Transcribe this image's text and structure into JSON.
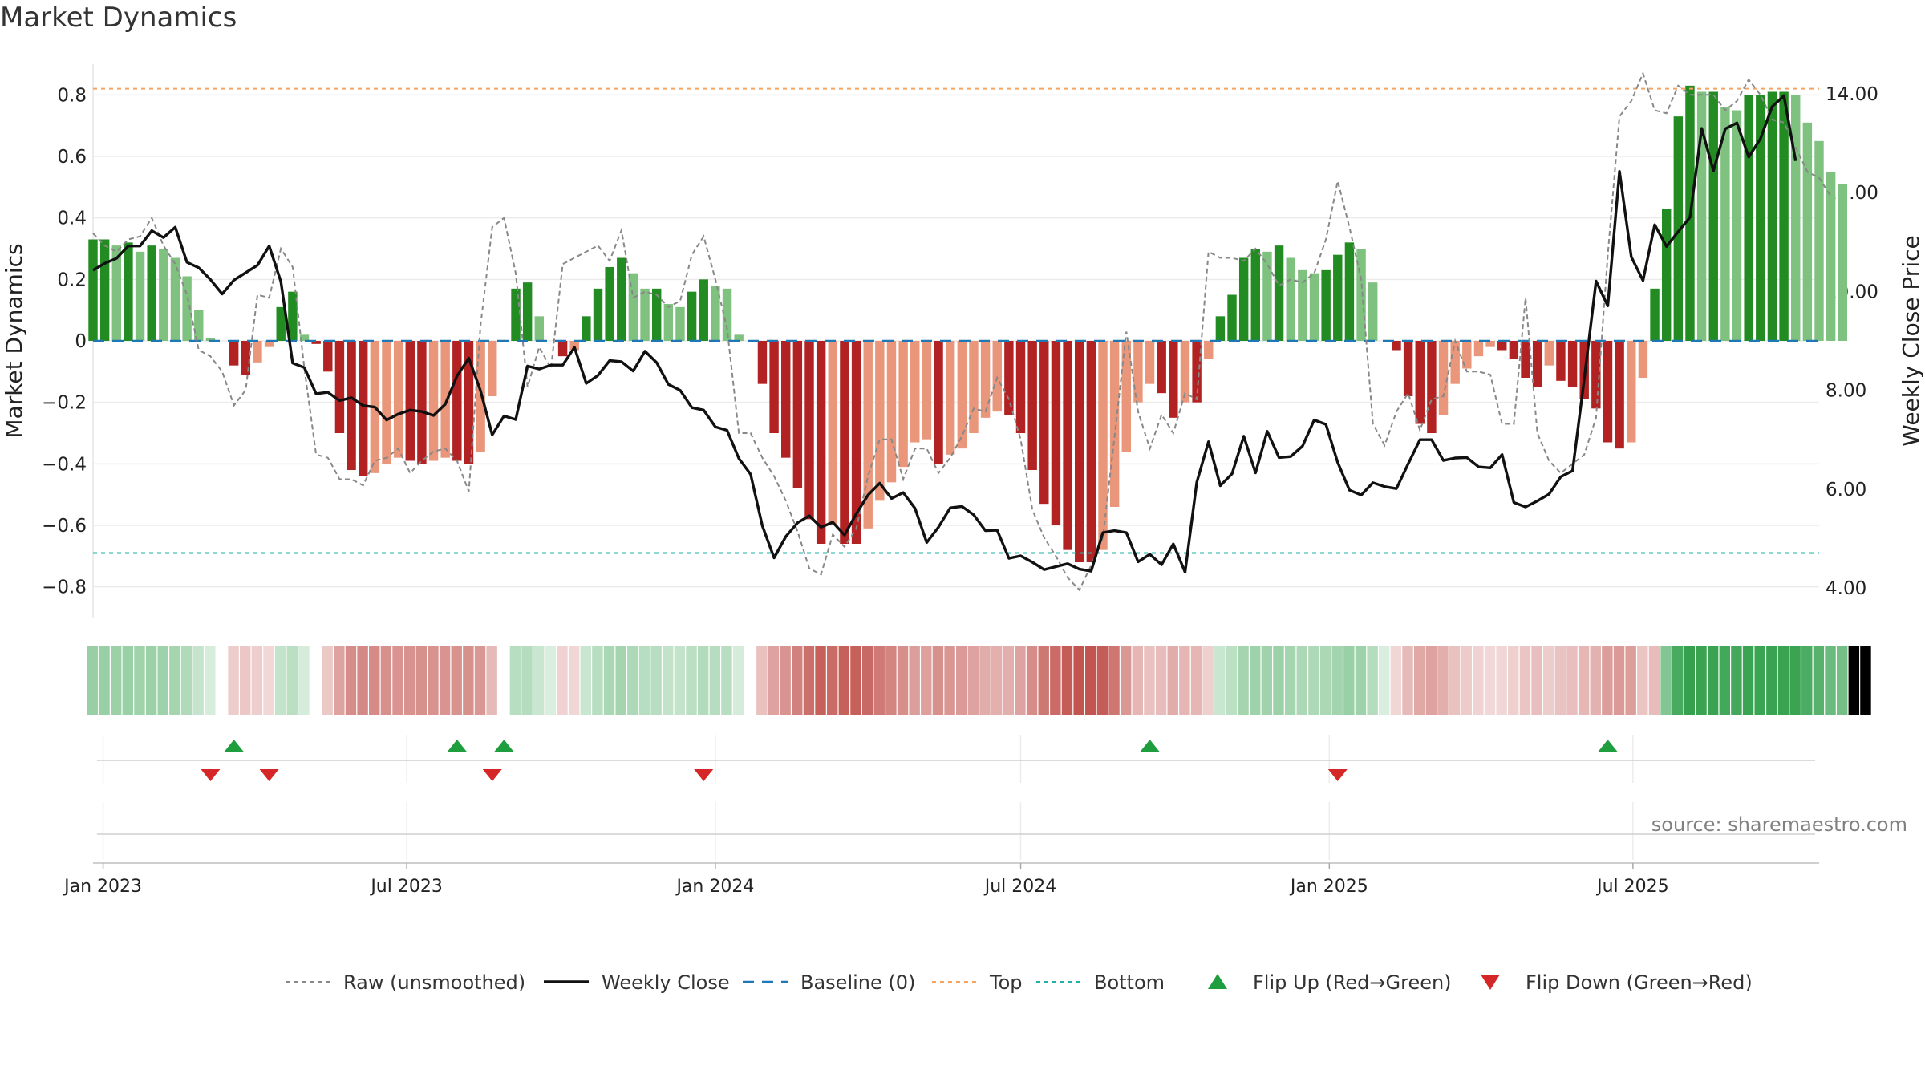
{
  "title": "Market Dynamics",
  "source": "source: sharemaestro.com",
  "chart_data": {
    "type": "bar",
    "title": "Market Dynamics",
    "ylabel": "Market Dynamics",
    "y2label": "Weekly Close Price",
    "ylim": [
      -0.9,
      0.9
    ],
    "y2lim": [
      3.4,
      14.6
    ],
    "yticks": [
      -0.8,
      -0.6,
      -0.4,
      -0.2,
      0,
      0.2,
      0.4,
      0.6,
      0.8
    ],
    "ytick_labels": [
      "−0.8",
      "−0.6",
      "−0.4",
      "−0.2",
      "0",
      "0.2",
      "0.4",
      "0.6",
      "0.8"
    ],
    "y2ticks": [
      4,
      6,
      8,
      10,
      12,
      14
    ],
    "y2tick_labels": [
      "4.00",
      "6.00",
      "8.00",
      "10.00",
      "12.00",
      "14.00"
    ],
    "xlim": [
      "2022-12-26",
      "2025-10-20"
    ],
    "xticks": [
      "2023-01-01",
      "2023-07-01",
      "2024-01-01",
      "2024-07-01",
      "2025-01-01",
      "2025-07-01"
    ],
    "xtick_labels": [
      "Jan 2023",
      "Jul 2023",
      "Jan 2024",
      "Jul 2024",
      "Jan 2025",
      "Jul 2025"
    ],
    "grid": true,
    "legend_placement": "bottom-center",
    "start_week": "2022-12-26",
    "top_line": 0.82,
    "bottom_line": -0.69,
    "colors": {
      "strong_green": "#228b22",
      "light_green": "#7fc17f",
      "strong_red": "#b22222",
      "light_red": "#e9967a",
      "close": "#111111",
      "raw": "#888888",
      "baseline": "#1f77b4",
      "top": "#f4a460",
      "bottom": "#20b2aa",
      "flip_up": "#1f9e3f",
      "flip_down": "#d62728"
    },
    "bars": [
      0.33,
      0.33,
      0.31,
      0.32,
      0.29,
      0.31,
      0.3,
      0.27,
      0.21,
      0.1,
      0.01,
      0,
      -0.08,
      -0.11,
      -0.07,
      -0.02,
      0.11,
      0.16,
      0.02,
      -0.01,
      -0.1,
      -0.3,
      -0.42,
      -0.44,
      -0.43,
      -0.4,
      -0.38,
      -0.39,
      -0.4,
      -0.39,
      -0.38,
      -0.39,
      -0.4,
      -0.36,
      -0.18,
      0,
      0.17,
      0.19,
      0.08,
      0,
      -0.05,
      -0.03,
      0.08,
      0.17,
      0.24,
      0.27,
      0.22,
      0.17,
      0.17,
      0.12,
      0.11,
      0.16,
      0.2,
      0.18,
      0.17,
      0.02,
      0,
      -0.14,
      -0.3,
      -0.38,
      -0.48,
      -0.58,
      -0.66,
      -0.6,
      -0.66,
      -0.66,
      -0.61,
      -0.52,
      -0.46,
      -0.41,
      -0.33,
      -0.32,
      -0.4,
      -0.37,
      -0.35,
      -0.3,
      -0.25,
      -0.23,
      -0.24,
      -0.3,
      -0.42,
      -0.53,
      -0.6,
      -0.68,
      -0.72,
      -0.72,
      -0.68,
      -0.54,
      -0.36,
      -0.2,
      -0.14,
      -0.17,
      -0.25,
      -0.2,
      -0.2,
      -0.06,
      0.08,
      0.15,
      0.27,
      0.3,
      0.29,
      0.31,
      0.27,
      0.23,
      0.22,
      0.23,
      0.28,
      0.32,
      0.3,
      0.19,
      0,
      -0.03,
      -0.18,
      -0.27,
      -0.3,
      -0.24,
      -0.14,
      -0.09,
      -0.05,
      -0.02,
      -0.03,
      -0.06,
      -0.12,
      -0.15,
      -0.08,
      -0.13,
      -0.15,
      -0.19,
      -0.22,
      -0.33,
      -0.35,
      -0.33,
      -0.12,
      0.17,
      0.43,
      0.73,
      0.83,
      0.81,
      0.81,
      0.76,
      0.75,
      0.8,
      0.8,
      0.81,
      0.81,
      0.8,
      0.71,
      0.65,
      0.55,
      0.51
    ],
    "raw": [
      0.35,
      0.31,
      0.29,
      0.33,
      0.34,
      0.4,
      0.31,
      0.25,
      0.15,
      -0.03,
      -0.05,
      -0.1,
      -0.21,
      -0.16,
      0.15,
      0.14,
      0.3,
      0.24,
      -0.09,
      -0.37,
      -0.38,
      -0.45,
      -0.45,
      -0.47,
      -0.39,
      -0.38,
      -0.35,
      -0.43,
      -0.39,
      -0.36,
      -0.35,
      -0.39,
      -0.49,
      0.05,
      0.37,
      0.4,
      0.22,
      -0.15,
      -0.02,
      -0.09,
      0.25,
      0.27,
      0.29,
      0.31,
      0.26,
      0.36,
      0.14,
      0.16,
      0.15,
      0.11,
      0.13,
      0.28,
      0.34,
      0.2,
      0.04,
      -0.3,
      -0.3,
      -0.38,
      -0.44,
      -0.52,
      -0.62,
      -0.74,
      -0.76,
      -0.63,
      -0.67,
      -0.61,
      -0.44,
      -0.32,
      -0.32,
      -0.45,
      -0.35,
      -0.35,
      -0.43,
      -0.38,
      -0.31,
      -0.22,
      -0.23,
      -0.12,
      -0.19,
      -0.32,
      -0.55,
      -0.64,
      -0.7,
      -0.77,
      -0.81,
      -0.73,
      -0.64,
      -0.31,
      0.03,
      -0.23,
      -0.35,
      -0.24,
      -0.3,
      -0.17,
      -0.19,
      0.29,
      0.27,
      0.27,
      0.26,
      0.3,
      0.25,
      0.18,
      0.2,
      0.19,
      0.22,
      0.33,
      0.52,
      0.37,
      0.2,
      -0.27,
      -0.34,
      -0.23,
      -0.17,
      -0.29,
      -0.19,
      -0.18,
      0,
      -0.1,
      -0.1,
      -0.11,
      -0.27,
      -0.27,
      0.14,
      -0.3,
      -0.39,
      -0.43,
      -0.4,
      -0.37,
      -0.25,
      0.28,
      0.73,
      0.78,
      0.87,
      0.75,
      0.74,
      0.83,
      0.8,
      0.8,
      0.8,
      0.75,
      0.78,
      0.85,
      0.8,
      0.72,
      0.71,
      0.63,
      0.55,
      0.53,
      0.47
    ],
    "close": [
      10.43,
      10.57,
      10.67,
      10.92,
      10.92,
      11.23,
      11.09,
      11.3,
      10.59,
      10.48,
      10.24,
      9.95,
      10.23,
      10.38,
      10.53,
      10.92,
      10.2,
      8.55,
      8.46,
      7.93,
      7.96,
      7.79,
      7.85,
      7.69,
      7.66,
      7.4,
      7.52,
      7.6,
      7.57,
      7.49,
      7.72,
      8.29,
      8.65,
      7.99,
      7.1,
      7.48,
      7.41,
      8.49,
      8.43,
      8.51,
      8.51,
      8.87,
      8.14,
      8.3,
      8.6,
      8.58,
      8.39,
      8.79,
      8.56,
      8.12,
      8.0,
      7.65,
      7.6,
      7.26,
      7.19,
      6.62,
      6.3,
      5.26,
      4.61,
      5.04,
      5.32,
      5.46,
      5.23,
      5.33,
      5.07,
      5.5,
      5.88,
      6.12,
      5.81,
      5.93,
      5.61,
      4.92,
      5.23,
      5.62,
      5.65,
      5.48,
      5.16,
      5.17,
      4.6,
      4.65,
      4.52,
      4.37,
      4.43,
      4.49,
      4.38,
      4.34,
      5.12,
      5.16,
      5.12,
      4.53,
      4.68,
      4.47,
      4.89,
      4.32,
      6.14,
      6.96,
      6.07,
      6.31,
      7.07,
      6.33,
      7.17,
      6.64,
      6.66,
      6.87,
      7.4,
      7.31,
      6.54,
      5.98,
      5.88,
      6.13,
      6.05,
      6.01,
      6.51,
      7.0,
      7.0,
      6.58,
      6.63,
      6.64,
      6.45,
      6.43,
      6.7,
      5.73,
      5.64,
      5.76,
      5.9,
      6.25,
      6.37,
      8.23,
      10.21,
      9.71,
      12.43,
      10.7,
      10.22,
      11.35,
      10.91,
      11.21,
      11.5,
      13.3,
      12.44,
      13.29,
      13.41,
      12.72,
      13.09,
      13.74,
      13.96,
      12.64
    ],
    "regime": [
      1,
      1,
      1,
      1,
      1,
      1,
      1,
      1,
      1,
      1,
      1,
      0,
      -1,
      -1,
      -1,
      -1,
      1,
      1,
      1,
      0,
      -1,
      -1,
      -1,
      -1,
      -1,
      -1,
      -1,
      -1,
      -1,
      -1,
      -1,
      -1,
      -1,
      -1,
      -1,
      0,
      1,
      1,
      1,
      1,
      -1,
      -1,
      1,
      1,
      1,
      1,
      1,
      1,
      1,
      1,
      1,
      1,
      1,
      1,
      1,
      1,
      0,
      -1,
      -1,
      -1,
      -1,
      -1,
      -1,
      -1,
      -1,
      -1,
      -1,
      -1,
      -1,
      -1,
      -1,
      -1,
      -1,
      -1,
      -1,
      -1,
      -1,
      -1,
      -1,
      -1,
      -1,
      -1,
      -1,
      -1,
      -1,
      -1,
      -1,
      -1,
      -1,
      -1,
      -1,
      -1,
      -1,
      -1,
      -1,
      -1,
      1,
      1,
      1,
      1,
      1,
      1,
      1,
      1,
      1,
      1,
      1,
      1,
      1,
      1,
      1,
      -1,
      -1,
      -1,
      -1,
      -1,
      -1,
      -1,
      -1,
      -1,
      -1,
      -1,
      -1,
      -1,
      -1,
      -1,
      -1,
      -1,
      -1,
      -1,
      -1,
      -1,
      -1,
      -1,
      1,
      1,
      1,
      1,
      1,
      1,
      1,
      1,
      1,
      1,
      1,
      1,
      1,
      1,
      1,
      1,
      1,
      1
    ],
    "flip_up": [
      "2023-03-20",
      "2023-07-31",
      "2023-08-28",
      "2024-09-16",
      "2025-06-16"
    ],
    "flip_down": [
      "2023-03-06",
      "2023-04-10",
      "2023-08-21",
      "2023-12-25",
      "2025-01-06"
    ],
    "legend": [
      {
        "label": "Raw (unsmoothed)",
        "style": "raw"
      },
      {
        "label": "Weekly Close",
        "style": "close"
      },
      {
        "label": "Baseline (0)",
        "style": "baseline"
      },
      {
        "label": "Top",
        "style": "top"
      },
      {
        "label": "Bottom",
        "style": "bottom"
      },
      {
        "label": "Flip Up (Red→Green)",
        "style": "up"
      },
      {
        "label": "Flip Down (Green→Red)",
        "style": "down"
      }
    ]
  }
}
